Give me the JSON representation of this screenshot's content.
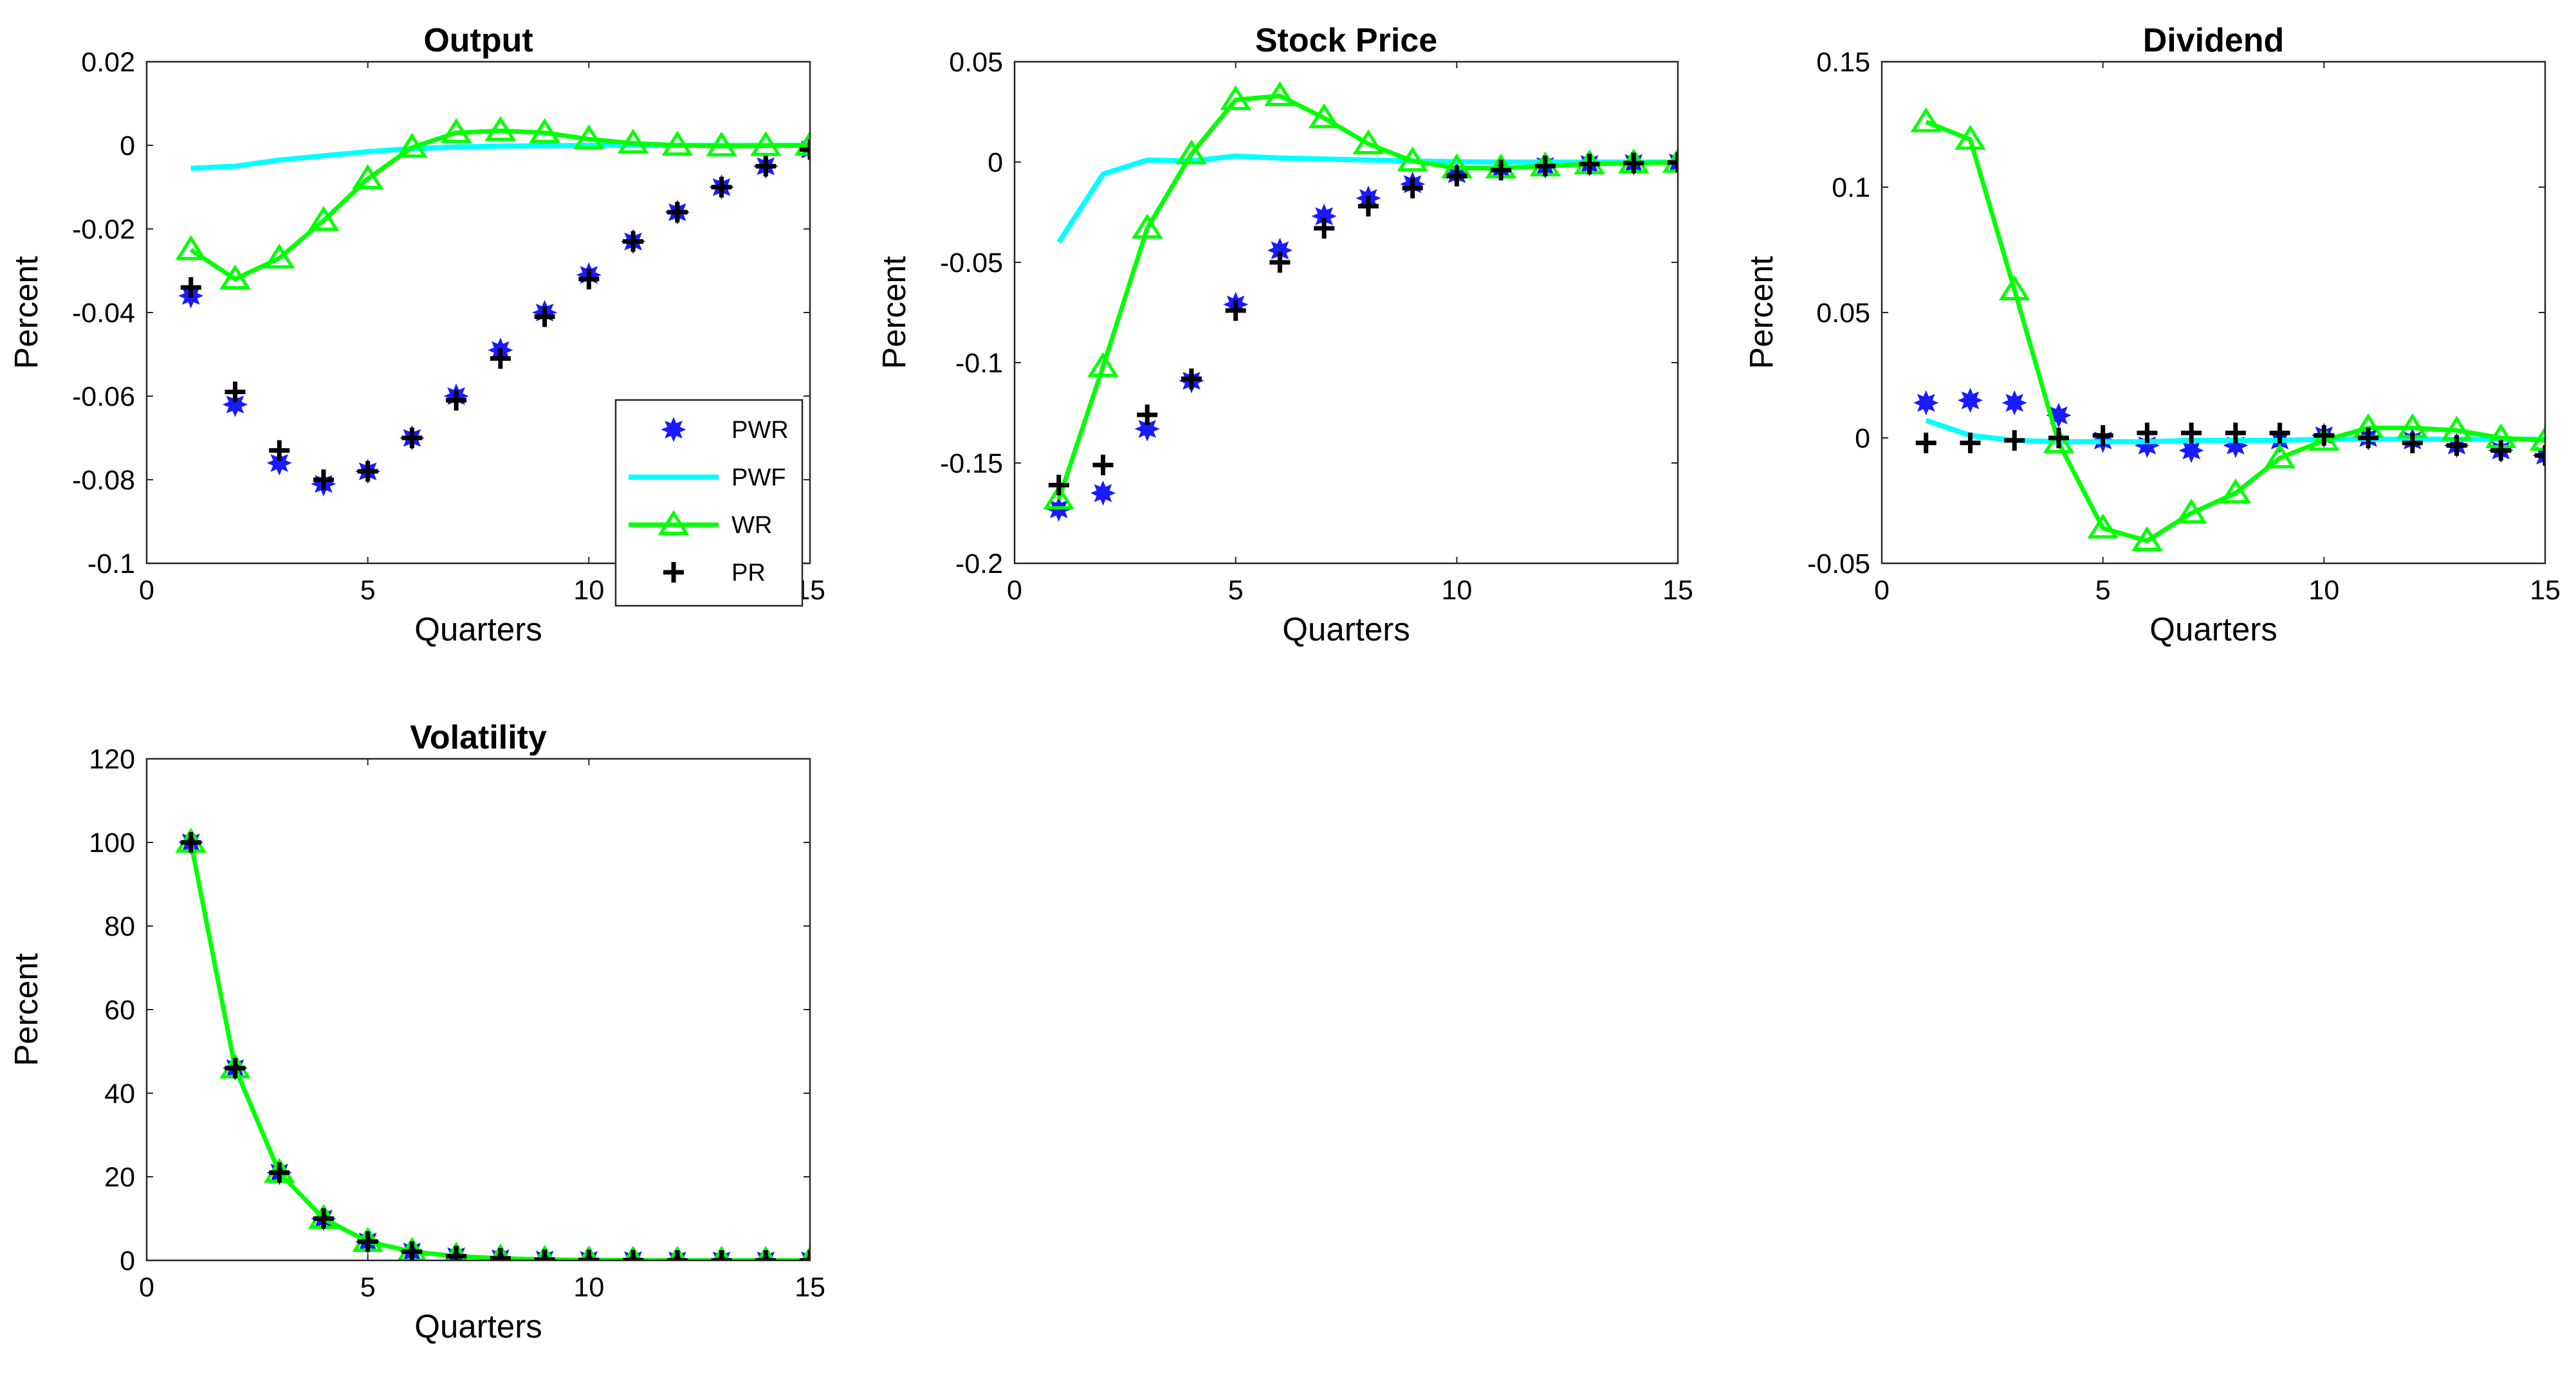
{
  "colors": {
    "PWR": "#1a1aff",
    "PWF": "#00ffff",
    "WR": "#00ff00",
    "PR": "#000000"
  },
  "chart_data": [
    {
      "type": "line",
      "title": "Output",
      "xlabel": "Quarters",
      "ylabel": "Percent",
      "xlim": [
        0,
        15
      ],
      "ylim": [
        -0.1,
        0.02
      ],
      "xticks": [
        0,
        5,
        10,
        15
      ],
      "xtick_labels": [
        "0",
        "5",
        "10",
        "15"
      ],
      "yticks": [
        -0.1,
        -0.08,
        -0.06,
        -0.04,
        -0.02,
        0,
        0.02
      ],
      "ytick_labels": [
        "-0.1",
        "-0.08",
        "-0.06",
        "-0.04",
        "-0.02",
        "0",
        "0.02"
      ],
      "legend": {
        "location": "bottom-right",
        "entries": [
          "PWR",
          "PWF",
          "WR",
          "PR"
        ]
      },
      "series": [
        {
          "name": "PWR",
          "style": "markers-star",
          "x": [
            1,
            2,
            3,
            4,
            5,
            6,
            7,
            8,
            9,
            10,
            11,
            12,
            13,
            14,
            15
          ],
          "y": [
            -0.036,
            -0.062,
            -0.076,
            -0.081,
            -0.078,
            -0.07,
            -0.06,
            -0.049,
            -0.04,
            -0.031,
            -0.023,
            -0.016,
            -0.01,
            -0.005,
            -0.001
          ]
        },
        {
          "name": "PWF",
          "style": "line",
          "x": [
            1,
            2,
            3,
            4,
            5,
            6,
            7,
            8,
            9,
            10,
            11,
            12,
            13,
            14,
            15
          ],
          "y": [
            -0.0055,
            -0.005,
            -0.0035,
            -0.0025,
            -0.0015,
            -0.0008,
            -0.0004,
            -0.0002,
            -0.0001,
            0,
            0,
            0,
            0,
            0,
            0
          ]
        },
        {
          "name": "WR",
          "style": "line-triangle",
          "x": [
            1,
            2,
            3,
            4,
            5,
            6,
            7,
            8,
            9,
            10,
            11,
            12,
            13,
            14,
            15
          ],
          "y": [
            -0.025,
            -0.032,
            -0.027,
            -0.018,
            -0.008,
            -0.0005,
            0.003,
            0.0035,
            0.003,
            0.0015,
            0.0005,
            0,
            -0.0002,
            -0.0001,
            0
          ]
        },
        {
          "name": "PR",
          "style": "markers-plus",
          "x": [
            1,
            2,
            3,
            4,
            5,
            6,
            7,
            8,
            9,
            10,
            11,
            12,
            13,
            14,
            15
          ],
          "y": [
            -0.034,
            -0.059,
            -0.073,
            -0.08,
            -0.078,
            -0.07,
            -0.061,
            -0.051,
            -0.041,
            -0.032,
            -0.023,
            -0.016,
            -0.01,
            -0.005,
            -0.001
          ]
        }
      ]
    },
    {
      "type": "line",
      "title": "Stock Price",
      "xlabel": "Quarters",
      "ylabel": "Percent",
      "xlim": [
        0,
        15
      ],
      "ylim": [
        -0.2,
        0.05
      ],
      "xticks": [
        0,
        5,
        10,
        15
      ],
      "xtick_labels": [
        "0",
        "5",
        "10",
        "15"
      ],
      "yticks": [
        -0.2,
        -0.15,
        -0.1,
        -0.05,
        0,
        0.05
      ],
      "ytick_labels": [
        "-0.2",
        "-0.15",
        "-0.1",
        "-0.05",
        "0",
        "0.05"
      ],
      "series": [
        {
          "name": "PWR",
          "style": "markers-star",
          "x": [
            1,
            2,
            3,
            4,
            5,
            6,
            7,
            8,
            9,
            10,
            11,
            12,
            13,
            14,
            15
          ],
          "y": [
            -0.173,
            -0.165,
            -0.133,
            -0.109,
            -0.071,
            -0.044,
            -0.027,
            -0.018,
            -0.011,
            -0.006,
            -0.003,
            -0.002,
            -0.001,
            -0.0005,
            -0.0002
          ]
        },
        {
          "name": "PWF",
          "style": "line",
          "x": [
            1,
            2,
            3,
            4,
            5,
            6,
            7,
            8,
            9,
            10,
            11,
            12,
            13,
            14,
            15
          ],
          "y": [
            -0.04,
            -0.006,
            0.001,
            0.0005,
            0.003,
            0.002,
            0.0015,
            0.001,
            0.0005,
            0.0002,
            0,
            0,
            0,
            0,
            0
          ]
        },
        {
          "name": "WR",
          "style": "line-triangle",
          "x": [
            1,
            2,
            3,
            4,
            5,
            6,
            7,
            8,
            9,
            10,
            11,
            12,
            13,
            14,
            15
          ],
          "y": [
            -0.168,
            -0.102,
            -0.033,
            0.004,
            0.031,
            0.033,
            0.022,
            0.009,
            0.0005,
            -0.003,
            -0.003,
            -0.002,
            -0.001,
            -0.0005,
            -0.0002
          ]
        },
        {
          "name": "PR",
          "style": "markers-plus",
          "x": [
            1,
            2,
            3,
            4,
            5,
            6,
            7,
            8,
            9,
            10,
            11,
            12,
            13,
            14,
            15
          ],
          "y": [
            -0.161,
            -0.151,
            -0.126,
            -0.108,
            -0.074,
            -0.05,
            -0.033,
            -0.022,
            -0.013,
            -0.007,
            -0.004,
            -0.002,
            -0.001,
            -0.0005,
            -0.0002
          ]
        }
      ]
    },
    {
      "type": "line",
      "title": "Dividend",
      "xlabel": "Quarters",
      "ylabel": "Percent",
      "xlim": [
        0,
        15
      ],
      "ylim": [
        -0.05,
        0.15
      ],
      "xticks": [
        0,
        5,
        10,
        15
      ],
      "xtick_labels": [
        "0",
        "5",
        "10",
        "15"
      ],
      "yticks": [
        -0.05,
        0,
        0.05,
        0.1,
        0.15
      ],
      "ytick_labels": [
        "-0.05",
        "0",
        "0.05",
        "0.1",
        "0.15"
      ],
      "series": [
        {
          "name": "PWR",
          "style": "markers-star",
          "x": [
            1,
            2,
            3,
            4,
            5,
            6,
            7,
            8,
            9,
            10,
            11,
            12,
            13,
            14,
            15
          ],
          "y": [
            0.014,
            0.015,
            0.014,
            0.009,
            -0.001,
            -0.003,
            -0.005,
            -0.003,
            -0.001,
            0.001,
            0,
            -0.001,
            -0.003,
            -0.005,
            -0.007
          ]
        },
        {
          "name": "PWF",
          "style": "line",
          "x": [
            1,
            2,
            3,
            4,
            5,
            6,
            7,
            8,
            9,
            10,
            11,
            12,
            13,
            14,
            15
          ],
          "y": [
            0.007,
            0.001,
            -0.001,
            -0.0015,
            -0.0015,
            -0.0015,
            -0.001,
            -0.001,
            -0.001,
            -0.0005,
            -0.0005,
            -0.0005,
            -0.0005,
            -0.0005,
            -0.0005
          ]
        },
        {
          "name": "WR",
          "style": "line-triangle",
          "x": [
            1,
            2,
            3,
            4,
            5,
            6,
            7,
            8,
            9,
            10,
            11,
            12,
            13,
            14,
            15
          ],
          "y": [
            0.126,
            0.119,
            0.059,
            -0.002,
            -0.036,
            -0.041,
            -0.03,
            -0.022,
            -0.008,
            -0.001,
            0.004,
            0.004,
            0.003,
            0,
            -0.001
          ]
        },
        {
          "name": "PR",
          "style": "markers-plus",
          "x": [
            1,
            2,
            3,
            4,
            5,
            6,
            7,
            8,
            9,
            10,
            11,
            12,
            13,
            14,
            15
          ],
          "y": [
            -0.002,
            -0.002,
            -0.001,
            0,
            0.001,
            0.002,
            0.002,
            0.002,
            0.002,
            0.001,
            0,
            -0.002,
            -0.003,
            -0.005,
            -0.007
          ]
        }
      ]
    },
    {
      "type": "line",
      "title": "Volatility",
      "xlabel": "Quarters",
      "ylabel": "Percent",
      "xlim": [
        0,
        15
      ],
      "ylim": [
        0,
        120
      ],
      "xticks": [
        0,
        5,
        10,
        15
      ],
      "xtick_labels": [
        "0",
        "5",
        "10",
        "15"
      ],
      "yticks": [
        0,
        20,
        40,
        60,
        80,
        100,
        120
      ],
      "ytick_labels": [
        "0",
        "20",
        "40",
        "60",
        "80",
        "100",
        "120"
      ],
      "series": [
        {
          "name": "PWR",
          "style": "markers-star",
          "x": [
            1,
            2,
            3,
            4,
            5,
            6,
            7,
            8,
            9,
            10,
            11,
            12,
            13,
            14,
            15
          ],
          "y": [
            100,
            46,
            21,
            10,
            4.5,
            2.1,
            1,
            0.5,
            0.2,
            0.1,
            0.05,
            0,
            0,
            0,
            0
          ]
        },
        {
          "name": "WR",
          "style": "line-triangle",
          "x": [
            1,
            2,
            3,
            4,
            5,
            6,
            7,
            8,
            9,
            10,
            11,
            12,
            13,
            14,
            15
          ],
          "y": [
            100,
            46,
            21,
            10,
            4.5,
            2.1,
            1,
            0.5,
            0.2,
            0.1,
            0.05,
            0,
            0,
            0,
            0
          ]
        },
        {
          "name": "PR",
          "style": "markers-plus",
          "x": [
            1,
            2,
            3,
            4,
            5,
            6,
            7,
            8,
            9,
            10,
            11,
            12,
            13,
            14,
            15
          ],
          "y": [
            100,
            46,
            21,
            10,
            4.5,
            2.1,
            1,
            0.5,
            0.2,
            0.1,
            0.05,
            0,
            0,
            0,
            0
          ]
        }
      ]
    }
  ]
}
